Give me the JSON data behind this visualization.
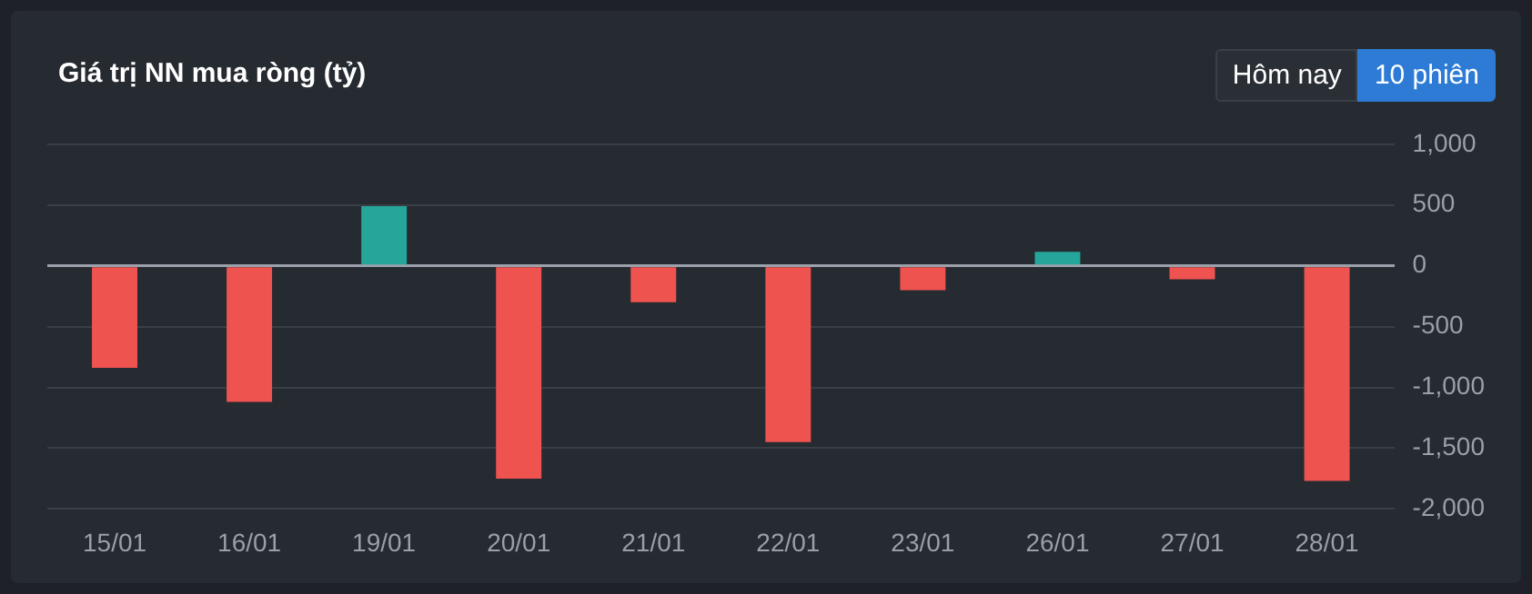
{
  "chart_data": {
    "type": "bar",
    "title": "Giá trị NN mua ròng (tỷ)",
    "annotations": [
      "Hôm nay",
      "10 phiên"
    ],
    "categories": [
      "15/01",
      "16/01",
      "19/01",
      "20/01",
      "21/01",
      "22/01",
      "23/01",
      "26/01",
      "27/01",
      "28/01"
    ],
    "values": [
      -840,
      -1120,
      490,
      -1750,
      -300,
      -1450,
      -200,
      115,
      -110,
      -1770
    ],
    "colors": [
      "#ef5350",
      "#ef5350",
      "#26a69a",
      "#ef5350",
      "#ef5350",
      "#ef5350",
      "#ef5350",
      "#26a69a",
      "#ef5350",
      "#ef5350"
    ],
    "ylim": [
      -2000,
      1000
    ],
    "yticks": [
      {
        "value": -2000,
        "label": "-2,000"
      },
      {
        "value": -1500,
        "label": "-1,500"
      },
      {
        "value": -1000,
        "label": "-1,000"
      },
      {
        "value": -500,
        "label": "-500"
      },
      0,
      500,
      {
        "value": 1000,
        "label": "1,000"
      }
    ],
    "grid": "y",
    "legend": false
  }
}
